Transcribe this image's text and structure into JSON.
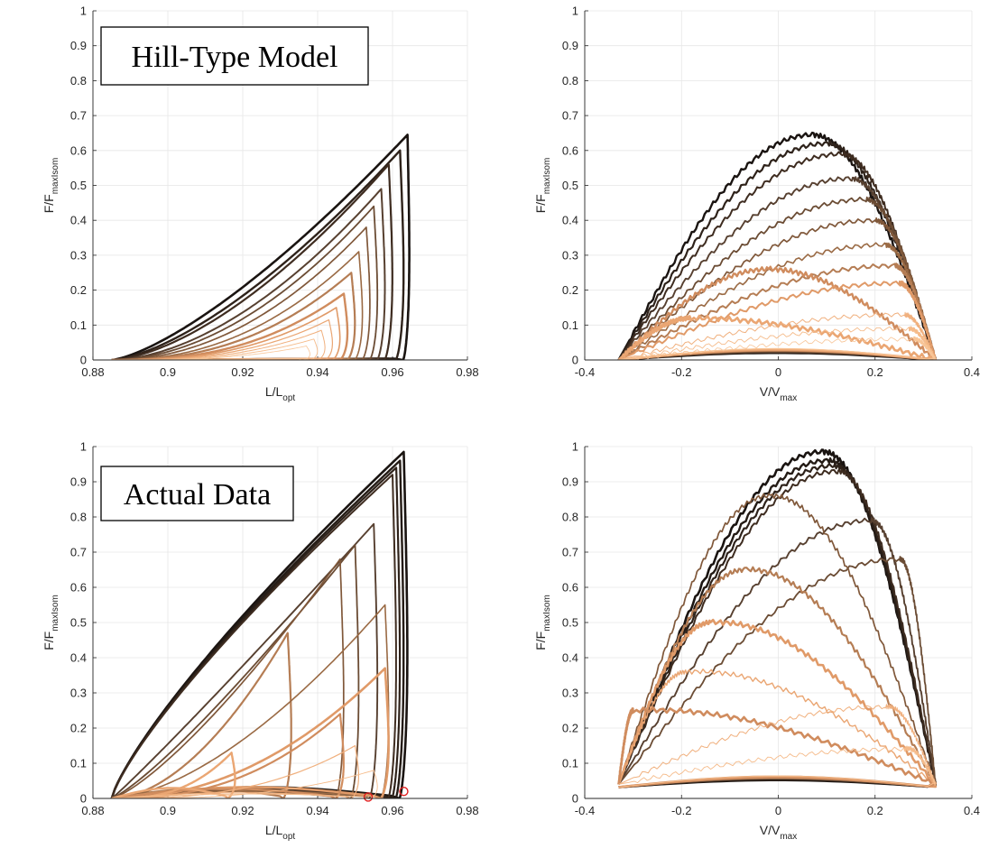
{
  "chart_data": [
    {
      "type": "line",
      "panel": "top-left",
      "annotation": "Hill-Type Model",
      "xlabel": {
        "main": "L/L",
        "sub": "opt"
      },
      "ylabel": {
        "main": "F/F",
        "sub": "maxIsom"
      },
      "xlim": [
        0.88,
        0.98
      ],
      "ylim": [
        0,
        1
      ],
      "xticks": [
        "0.88",
        "0.9",
        "0.92",
        "0.94",
        "0.96",
        "0.98"
      ],
      "yticks": [
        "0",
        "0.1",
        "0.2",
        "0.3",
        "0.4",
        "0.5",
        "0.6",
        "0.7",
        "0.8",
        "0.9",
        "1"
      ],
      "grid": true,
      "loops": [
        {
          "peak_x": 0.964,
          "peak_y": 0.645,
          "color": "#1a1411",
          "width": 2.6
        },
        {
          "peak_x": 0.962,
          "peak_y": 0.6,
          "color": "#2e221a",
          "width": 2.4
        },
        {
          "peak_x": 0.959,
          "peak_y": 0.56,
          "color": "#3e2c20",
          "width": 2.2
        },
        {
          "peak_x": 0.957,
          "peak_y": 0.49,
          "color": "#574030",
          "width": 2.0
        },
        {
          "peak_x": 0.955,
          "peak_y": 0.44,
          "color": "#6b4c34",
          "width": 1.8
        },
        {
          "peak_x": 0.953,
          "peak_y": 0.38,
          "color": "#80583a",
          "width": 1.7
        },
        {
          "peak_x": 0.951,
          "peak_y": 0.31,
          "color": "#9a6a44",
          "width": 1.6
        },
        {
          "peak_x": 0.949,
          "peak_y": 0.25,
          "color": "#b57d54",
          "width": 2.2
        },
        {
          "peak_x": 0.947,
          "peak_y": 0.19,
          "color": "#d08c5e",
          "width": 2.4
        },
        {
          "peak_x": 0.945,
          "peak_y": 0.15,
          "color": "#e09a68",
          "width": 1.6
        },
        {
          "peak_x": 0.943,
          "peak_y": 0.115,
          "color": "#eaa673",
          "width": 1.2
        },
        {
          "peak_x": 0.941,
          "peak_y": 0.085,
          "color": "#f0b07e",
          "width": 1.0
        },
        {
          "peak_x": 0.939,
          "peak_y": 0.06,
          "color": "#f5bb8a",
          "width": 0.9
        },
        {
          "peak_x": 0.937,
          "peak_y": 0.04,
          "color": "#f8c597",
          "width": 0.8
        }
      ]
    },
    {
      "type": "line",
      "panel": "top-right",
      "xlabel": {
        "main": "V/V",
        "sub": "max"
      },
      "ylabel": {
        "main": "F/F",
        "sub": "maxIsom"
      },
      "xlim": [
        -0.4,
        0.4
      ],
      "ylim": [
        0,
        1
      ],
      "xticks": [
        "-0.4",
        "-0.2",
        "0",
        "0.2",
        "0.4"
      ],
      "yticks": [
        "0",
        "0.1",
        "0.2",
        "0.3",
        "0.4",
        "0.5",
        "0.6",
        "0.7",
        "0.8",
        "0.9",
        "1"
      ],
      "grid": true,
      "loops": [
        {
          "peak_x": 0.07,
          "peak_y": 0.645,
          "color": "#1a1411",
          "width": 2.4
        },
        {
          "peak_x": 0.1,
          "peak_y": 0.62,
          "color": "#2e221a",
          "width": 2.2
        },
        {
          "peak_x": 0.13,
          "peak_y": 0.59,
          "color": "#3e2c20",
          "width": 2.0
        },
        {
          "peak_x": 0.15,
          "peak_y": 0.52,
          "color": "#574030",
          "width": 1.9
        },
        {
          "peak_x": 0.18,
          "peak_y": 0.46,
          "color": "#6b4c34",
          "width": 1.8
        },
        {
          "peak_x": 0.2,
          "peak_y": 0.4,
          "color": "#80583a",
          "width": 1.7
        },
        {
          "peak_x": 0.22,
          "peak_y": 0.33,
          "color": "#9a6a44",
          "width": 1.6
        },
        {
          "peak_x": 0.24,
          "peak_y": 0.27,
          "color": "#b57d54",
          "width": 2.0
        },
        {
          "peak_x": -0.02,
          "peak_y": 0.26,
          "color": "#d08c5e",
          "width": 2.4
        },
        {
          "peak_x": 0.25,
          "peak_y": 0.22,
          "color": "#e09a68",
          "width": 2.0
        },
        {
          "peak_x": -0.18,
          "peak_y": 0.12,
          "color": "#eaa673",
          "width": 2.6
        },
        {
          "peak_x": 0.26,
          "peak_y": 0.13,
          "color": "#f0b07e",
          "width": 1.0
        },
        {
          "peak_x": 0.27,
          "peak_y": 0.09,
          "color": "#f5bb8a",
          "width": 0.9
        },
        {
          "peak_x": 0.28,
          "peak_y": 0.06,
          "color": "#f8c597",
          "width": 0.8
        }
      ]
    },
    {
      "type": "line",
      "panel": "bottom-left",
      "annotation": "Actual Data",
      "xlabel": {
        "main": "L/L",
        "sub": "opt"
      },
      "ylabel": {
        "main": "F/F",
        "sub": "maxIsom"
      },
      "xlim": [
        0.88,
        0.98
      ],
      "ylim": [
        0,
        1
      ],
      "xticks": [
        "0.88",
        "0.9",
        "0.92",
        "0.94",
        "0.96",
        "0.98"
      ],
      "yticks": [
        "0",
        "0.1",
        "0.2",
        "0.3",
        "0.4",
        "0.5",
        "0.6",
        "0.7",
        "0.8",
        "0.9",
        "1"
      ],
      "grid": true,
      "markers": [
        {
          "x": 0.9535,
          "y": 0.004,
          "color": "#e02020"
        },
        {
          "x": 0.963,
          "y": 0.02,
          "color": "#e02020"
        }
      ],
      "loops": [
        {
          "peak_x": 0.963,
          "peak_y": 0.985,
          "color": "#1a1411",
          "width": 2.6
        },
        {
          "peak_x": 0.962,
          "peak_y": 0.96,
          "color": "#241b15",
          "width": 2.4
        },
        {
          "peak_x": 0.961,
          "peak_y": 0.94,
          "color": "#2e221a",
          "width": 2.2
        },
        {
          "peak_x": 0.96,
          "peak_y": 0.92,
          "color": "#3e2c20",
          "width": 2.0
        },
        {
          "peak_x": 0.955,
          "peak_y": 0.78,
          "color": "#574030",
          "width": 1.9
        },
        {
          "peak_x": 0.95,
          "peak_y": 0.72,
          "color": "#6b4c34",
          "width": 1.8
        },
        {
          "peak_x": 0.946,
          "peak_y": 0.68,
          "color": "#80583a",
          "width": 1.7
        },
        {
          "peak_x": 0.932,
          "peak_y": 0.47,
          "color": "#b57d54",
          "width": 2.2
        },
        {
          "peak_x": 0.958,
          "peak_y": 0.55,
          "color": "#9a6a44",
          "width": 1.6
        },
        {
          "peak_x": 0.958,
          "peak_y": 0.37,
          "color": "#e09a68",
          "width": 2.6
        },
        {
          "peak_x": 0.946,
          "peak_y": 0.24,
          "color": "#d08c5e",
          "width": 2.2
        },
        {
          "peak_x": 0.917,
          "peak_y": 0.13,
          "color": "#eaa673",
          "width": 2.4
        },
        {
          "peak_x": 0.95,
          "peak_y": 0.15,
          "color": "#f0b07e",
          "width": 1.2
        },
        {
          "peak_x": 0.955,
          "peak_y": 0.08,
          "color": "#f5bb8a",
          "width": 0.9
        }
      ]
    },
    {
      "type": "line",
      "panel": "bottom-right",
      "xlabel": {
        "main": "V/V",
        "sub": "max"
      },
      "ylabel": {
        "main": "F/F",
        "sub": "maxIsom"
      },
      "xlim": [
        -0.4,
        0.4
      ],
      "ylim": [
        0,
        1
      ],
      "xticks": [
        "-0.4",
        "-0.2",
        "0",
        "0.2",
        "0.4"
      ],
      "yticks": [
        "0",
        "0.1",
        "0.2",
        "0.3",
        "0.4",
        "0.5",
        "0.6",
        "0.7",
        "0.8",
        "0.9",
        "1"
      ],
      "grid": true,
      "loops": [
        {
          "peak_x": 0.09,
          "peak_y": 0.985,
          "color": "#1a1411",
          "width": 2.6
        },
        {
          "peak_x": 0.1,
          "peak_y": 0.96,
          "color": "#241b15",
          "width": 2.4
        },
        {
          "peak_x": 0.11,
          "peak_y": 0.945,
          "color": "#2e221a",
          "width": 2.2
        },
        {
          "peak_x": 0.12,
          "peak_y": 0.93,
          "color": "#3e2c20",
          "width": 2.0
        },
        {
          "peak_x": 0.19,
          "peak_y": 0.79,
          "color": "#574030",
          "width": 1.9
        },
        {
          "peak_x": 0.25,
          "peak_y": 0.68,
          "color": "#6b4c34",
          "width": 1.8
        },
        {
          "peak_x": -0.02,
          "peak_y": 0.86,
          "color": "#80583a",
          "width": 1.7
        },
        {
          "peak_x": -0.07,
          "peak_y": 0.65,
          "color": "#b57d54",
          "width": 2.2
        },
        {
          "peak_x": -0.14,
          "peak_y": 0.5,
          "color": "#e09a68",
          "width": 2.6
        },
        {
          "peak_x": -0.19,
          "peak_y": 0.36,
          "color": "#eaa673",
          "width": 1.4
        },
        {
          "peak_x": -0.3,
          "peak_y": 0.25,
          "color": "#d08c5e",
          "width": 2.6
        },
        {
          "peak_x": 0.22,
          "peak_y": 0.26,
          "color": "#f0b07e",
          "width": 1.0
        },
        {
          "peak_x": 0.26,
          "peak_y": 0.14,
          "color": "#f5bb8a",
          "width": 0.9
        }
      ]
    }
  ]
}
